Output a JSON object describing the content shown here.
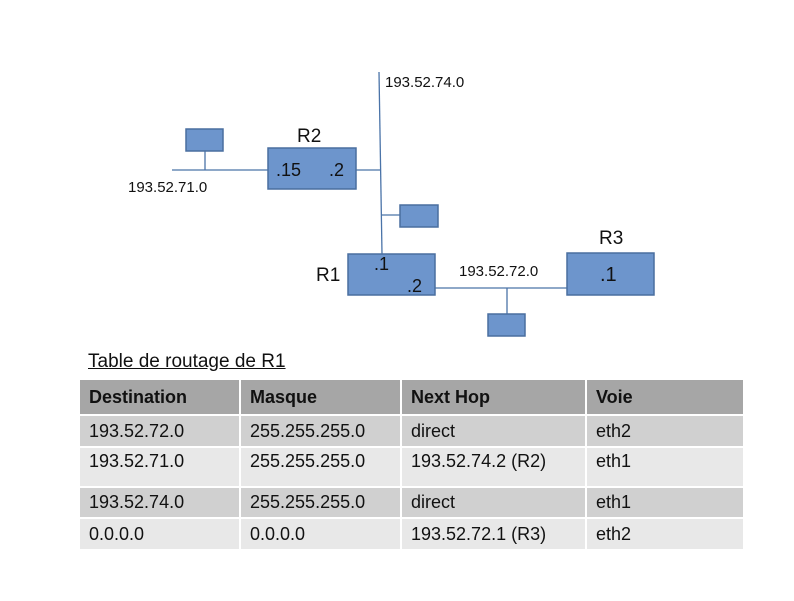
{
  "networks": {
    "net_74": "193.52.74.0",
    "net_71": "193.52.71.0",
    "net_72": "193.52.72.0"
  },
  "routers": {
    "r1": {
      "name": "R1",
      "if_a": ".1",
      "if_b": ".2"
    },
    "r2": {
      "name": "R2",
      "if_a": ".15",
      "if_b": ".2"
    },
    "r3": {
      "name": "R3",
      "if_a": ".1"
    }
  },
  "colors": {
    "box": "#6d95cc",
    "wire": "#4a73a8",
    "header": "#a6a6a6"
  },
  "table": {
    "title": "Table de routage de R1",
    "headers": [
      "Destination",
      "Masque",
      "Next Hop",
      "Voie"
    ],
    "rows": [
      [
        "193.52.72.0",
        "255.255.255.0",
        "direct",
        "eth2"
      ],
      [
        "193.52.71.0",
        "255.255.255.0",
        "193.52.74.2 (R2)",
        "eth1"
      ],
      [
        "193.52.74.0",
        "255.255.255.0",
        "direct",
        "eth1"
      ],
      [
        "0.0.0.0",
        "0.0.0.0",
        "193.52.72.1 (R3)",
        "eth2"
      ]
    ]
  }
}
